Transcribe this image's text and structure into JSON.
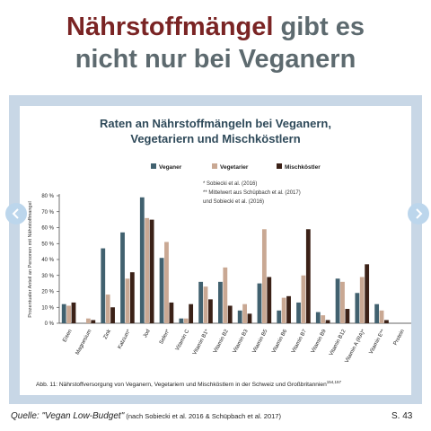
{
  "headline": {
    "accent": "Nährstoffmängel",
    "rest_line1": " gibt es",
    "line2": "nicht nur bei Veganern"
  },
  "colors": {
    "vegan": "#41616f",
    "vegetarier": "#c9a893",
    "misch": "#3b2117",
    "accent": "#7a2424",
    "title": "#2f4a5a"
  },
  "chart_data": {
    "type": "bar",
    "title_line1": "Raten an Nährstoffmängeln bei Veganern,",
    "title_line2": "Vegetariern und Mischköstlern",
    "ylabel": "Prozentualer Anteil an Personen mit Nährstoffmangel",
    "ylim": [
      0,
      80
    ],
    "yticks": [
      "0 %",
      "10 %",
      "20 %",
      "30 %",
      "40 %",
      "50 %",
      "60 %",
      "70 %",
      "80 %"
    ],
    "categories": [
      "Eisen",
      "Magnesium",
      "Zink",
      "Kalzium*",
      "Jod",
      "Selen*",
      "Vitamin C",
      "Vitamin B1*",
      "Vitamin B2",
      "Vitamin B3",
      "Vitamin B5",
      "Vitamin B6",
      "Vitamin B7",
      "Vitamin B9",
      "Vitamin B12",
      "Vitamin A (RA)*",
      "Vitamin E**",
      "Protein"
    ],
    "series": [
      {
        "name": "Veganer",
        "values": [
          12,
          0,
          47,
          57,
          79,
          41,
          3,
          26,
          26,
          8,
          25,
          8,
          13,
          7,
          28,
          19,
          12,
          0
        ]
      },
      {
        "name": "Vegetarier",
        "values": [
          11,
          3,
          18,
          28,
          66,
          51,
          3,
          23,
          35,
          12,
          59,
          16,
          30,
          5,
          26,
          29,
          8,
          0
        ]
      },
      {
        "name": "Mischköstler",
        "values": [
          13,
          2,
          10,
          32,
          65,
          13,
          12,
          15,
          11,
          6,
          29,
          17,
          59,
          2,
          9,
          37,
          2,
          0
        ]
      }
    ],
    "notes": [
      "*   Sobiecki et al. (2016)",
      "**  Mittelwert aus Schüpbach et al. (2017)",
      "     und Sobiecki et al. (2016)"
    ],
    "caption": "Abb. 11: Nährstoffversorgung von Veganern, Vegetariern und Mischköstlern in der Schweiz und Großbritannien",
    "caption_ref": "154,157"
  },
  "footer": {
    "prefix": "Quelle: ",
    "source": "\"Vegan Low-Budget\"",
    "detail": " (nach Sobiecki et al. 2016 & Schüpbach et al. 2017)",
    "page": "S. 43"
  }
}
